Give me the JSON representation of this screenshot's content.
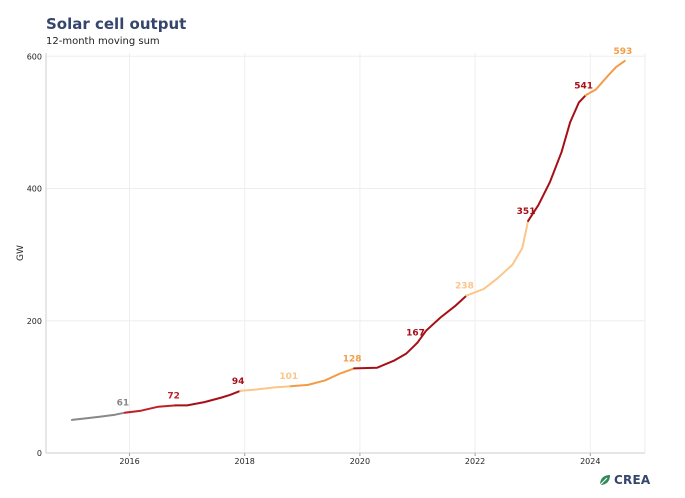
{
  "header": {
    "title": "Solar cell output",
    "subtitle": "12-month moving sum"
  },
  "logo": {
    "text": "CREA",
    "icon": "crea-leaf-icon"
  },
  "colors": {
    "grey": "#888888",
    "dark_red": "#a50f15",
    "red": "#c0202a",
    "orange": "#f39c46",
    "light": "#fcc58a",
    "navy": "#35456b",
    "grid": "#eeeeee",
    "axis": "#cccccc"
  },
  "chart_data": {
    "type": "line",
    "title": "Solar cell output",
    "subtitle": "12-month moving sum",
    "xlabel": "",
    "ylabel": "GW",
    "xlim": [
      2014.55,
      2024.95
    ],
    "ylim": [
      0,
      605
    ],
    "xticks": [
      2016,
      2018,
      2020,
      2022,
      2024
    ],
    "yticks": [
      0,
      200,
      400,
      600
    ],
    "grid": true,
    "series": [
      {
        "name": "Solar cell output (12-month moving sum)",
        "segments": [
          {
            "year": "2015",
            "color": "#888888",
            "points": [
              [
                2015.0,
                50
              ],
              [
                2015.2,
                52
              ],
              [
                2015.5,
                55
              ],
              [
                2015.75,
                58
              ],
              [
                2015.92,
                61
              ]
            ]
          },
          {
            "year": "2016",
            "color": "#c0202a",
            "points": [
              [
                2015.92,
                61
              ],
              [
                2016.2,
                64
              ],
              [
                2016.5,
                70
              ],
              [
                2016.8,
                72
              ]
            ]
          },
          {
            "year": "2017",
            "color": "#a50f15",
            "points": [
              [
                2016.8,
                72
              ],
              [
                2017.0,
                72
              ],
              [
                2017.3,
                77
              ],
              [
                2017.6,
                84
              ],
              [
                2017.75,
                88
              ],
              [
                2017.92,
                94
              ]
            ]
          },
          {
            "year": "2018",
            "color": "#fcc58a",
            "points": [
              [
                2017.92,
                94
              ],
              [
                2018.2,
                96
              ],
              [
                2018.5,
                99
              ],
              [
                2018.8,
                101
              ]
            ]
          },
          {
            "year": "2019",
            "color": "#f39c46",
            "points": [
              [
                2018.8,
                101
              ],
              [
                2019.1,
                103
              ],
              [
                2019.4,
                110
              ],
              [
                2019.65,
                120
              ],
              [
                2019.9,
                128
              ]
            ]
          },
          {
            "year": "2020",
            "color": "#a50f15",
            "points": [
              [
                2019.9,
                128
              ],
              [
                2020.3,
                129
              ],
              [
                2020.6,
                140
              ],
              [
                2020.8,
                150
              ],
              [
                2020.92,
                160
              ],
              [
                2021.0,
                167
              ]
            ]
          },
          {
            "year": "2021",
            "color": "#a50f15",
            "points": [
              [
                2021.0,
                167
              ],
              [
                2021.15,
                185
              ],
              [
                2021.4,
                205
              ],
              [
                2021.65,
                222
              ],
              [
                2021.85,
                238
              ]
            ]
          },
          {
            "year": "2022",
            "color": "#fcc58a",
            "points": [
              [
                2021.85,
                238
              ],
              [
                2022.15,
                248
              ],
              [
                2022.4,
                265
              ],
              [
                2022.65,
                285
              ],
              [
                2022.82,
                310
              ],
              [
                2022.92,
                351
              ]
            ]
          },
          {
            "year": "2023",
            "color": "#a50f15",
            "points": [
              [
                2022.92,
                351
              ],
              [
                2023.1,
                375
              ],
              [
                2023.3,
                410
              ],
              [
                2023.5,
                455
              ],
              [
                2023.65,
                500
              ],
              [
                2023.8,
                530
              ],
              [
                2023.92,
                541
              ]
            ]
          },
          {
            "year": "2024",
            "color": "#f39c46",
            "points": [
              [
                2023.92,
                541
              ],
              [
                2024.1,
                550
              ],
              [
                2024.3,
                570
              ],
              [
                2024.45,
                584
              ],
              [
                2024.6,
                593
              ]
            ]
          }
        ]
      }
    ],
    "annotations": [
      {
        "label": "61",
        "x": 2015.92,
        "y": 61,
        "color": "#888888"
      },
      {
        "label": "72",
        "x": 2016.8,
        "y": 72,
        "color": "#c0202a"
      },
      {
        "label": "94",
        "x": 2017.92,
        "y": 94,
        "color": "#a50f15"
      },
      {
        "label": "101",
        "x": 2018.8,
        "y": 101,
        "color": "#fcc58a"
      },
      {
        "label": "128",
        "x": 2019.9,
        "y": 128,
        "color": "#f39c46"
      },
      {
        "label": "167",
        "x": 2021.0,
        "y": 167,
        "color": "#a50f15"
      },
      {
        "label": "238",
        "x": 2021.85,
        "y": 238,
        "color": "#fcc58a"
      },
      {
        "label": "351",
        "x": 2022.92,
        "y": 351,
        "color": "#a50f15"
      },
      {
        "label": "541",
        "x": 2023.92,
        "y": 541,
        "color": "#a50f15"
      },
      {
        "label": "593",
        "x": 2024.6,
        "y": 593,
        "color": "#f39c46"
      }
    ]
  }
}
